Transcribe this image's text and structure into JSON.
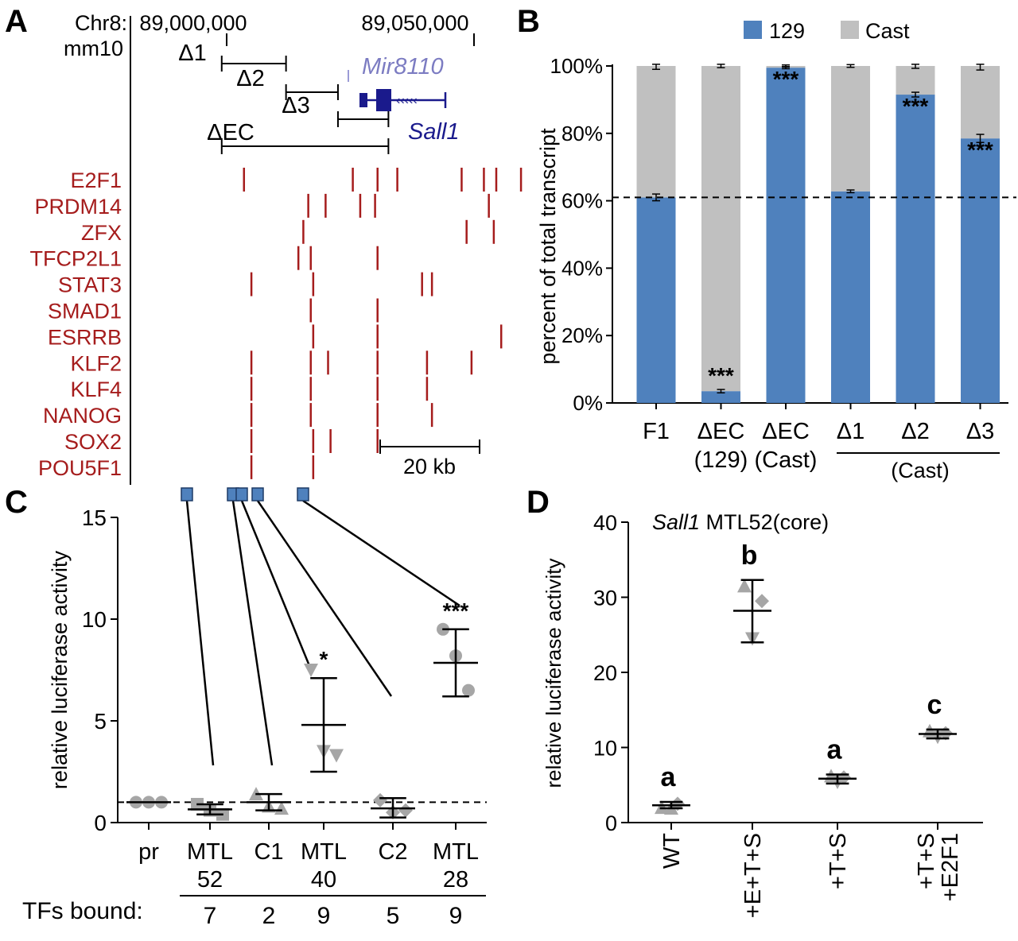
{
  "panel_labels": {
    "a": "A",
    "b": "B",
    "c": "C",
    "d": "D"
  },
  "panel_a": {
    "chrom_label": "Chr8:",
    "assembly": "mm10",
    "coord_left": "89,000,000",
    "coord_right": "89,050,000",
    "mir_label": "Mir8110",
    "sall1_label": "Sall1",
    "scale_label": "20 kb",
    "deletions": [
      {
        "label": "Δ1",
        "start": 88999000,
        "end": 89012000
      },
      {
        "label": "Δ2",
        "start": 89012000,
        "end": 89022500
      },
      {
        "label": "Δ3",
        "start": 89022500,
        "end": 89032700
      },
      {
        "label": "ΔEC",
        "start": 88999000,
        "end": 89032700
      }
    ],
    "tracks": [
      {
        "name": "E2F1",
        "peaks": [
          89003500,
          89025500,
          89030500,
          89034500,
          89047500,
          89052000,
          89054500,
          89059500
        ]
      },
      {
        "name": "PRDM14",
        "peaks": [
          89016500,
          89020000,
          89027000,
          89030000,
          89053000
        ]
      },
      {
        "name": "ZFX",
        "peaks": [
          89015500,
          89048500,
          89054000
        ]
      },
      {
        "name": "TFCP2L1",
        "peaks": [
          89014500,
          89017000,
          89030500
        ]
      },
      {
        "name": "STAT3",
        "peaks": [
          89005000,
          89017500,
          89039500,
          89041500
        ]
      },
      {
        "name": "SMAD1",
        "peaks": [
          89017000,
          89030500
        ]
      },
      {
        "name": "ESRRB",
        "peaks": [
          89017500,
          89030500,
          89055500
        ]
      },
      {
        "name": "KLF2",
        "peaks": [
          89005000,
          89017000,
          89020500,
          89030500,
          89040500,
          89049500
        ]
      },
      {
        "name": "KLF4",
        "peaks": [
          89005000,
          89017000,
          89030500,
          89040500
        ]
      },
      {
        "name": "NANOG",
        "peaks": [
          89005000,
          89017000,
          89030500,
          89041500
        ]
      },
      {
        "name": "SOX2",
        "peaks": [
          89005000,
          89017500,
          89021000,
          89030500
        ]
      },
      {
        "name": "POU5F1",
        "peaks": [
          89005000,
          89017500
        ]
      }
    ]
  },
  "panel_b": {
    "legend": [
      {
        "name": "129",
        "color": "#4f81bd"
      },
      {
        "name": "Cast",
        "color": "#c0c0c0"
      }
    ],
    "ylabel": "percent of total transcript",
    "ytick_labels": [
      "0%",
      "20%",
      "40%",
      "60%",
      "80%",
      "100%"
    ],
    "group_label": "(Cast)"
  },
  "panel_c": {
    "ylabel": "relative luciferase activity",
    "tfs_label": "TFs bound:",
    "tfs_counts": [
      "7",
      "2",
      "9",
      "5",
      "9"
    ]
  },
  "panel_d": {
    "title_italic": "Sall1",
    "title_rest": " MTL52(core)",
    "ylabel": "relative luciferase activity"
  },
  "chart_data": [
    {
      "type": "bar",
      "stacked": true,
      "categories": [
        "F1",
        "ΔEC (129)",
        "ΔEC (Cast)",
        "Δ1",
        "Δ2",
        "Δ3"
      ],
      "series": [
        {
          "name": "129",
          "values": [
            61,
            3.5,
            99.5,
            62.8,
            91.5,
            78.5
          ]
        },
        {
          "name": "Cast",
          "values": [
            39,
            96.5,
            0.5,
            37.2,
            8.5,
            21.5
          ]
        }
      ],
      "errors": [
        1,
        0.5,
        0.3,
        0.4,
        0.7,
        1.2
      ],
      "significance": [
        "",
        "***",
        "***",
        "",
        "***",
        "***"
      ],
      "reference_line": 61,
      "ylim": [
        0,
        100
      ],
      "ylabel": "percent of total transcript"
    },
    {
      "type": "scatter",
      "categories": [
        "pr",
        "MTL 52",
        "C1",
        "MTL 40",
        "C2",
        "MTL 28"
      ],
      "points": [
        [
          1,
          1,
          1
        ],
        [
          0.9,
          0.6,
          0.4
        ],
        [
          1.4,
          0.8,
          0.7
        ],
        [
          7.5,
          3.5,
          3.3
        ],
        [
          1.1,
          0.5,
          0.6
        ],
        [
          9.5,
          8.2,
          6.5
        ]
      ],
      "means": [
        1,
        0.65,
        1.0,
        4.8,
        0.7,
        7.85
      ],
      "error_high": [
        1,
        0.9,
        1.4,
        7.1,
        1.2,
        9.5
      ],
      "error_low": [
        1,
        0.4,
        0.6,
        2.5,
        0.25,
        6.2
      ],
      "significance": [
        "",
        "",
        "",
        "*",
        "",
        "***"
      ],
      "tfs_bound": [
        null,
        7,
        2,
        9,
        5,
        9
      ],
      "reference_line": 1,
      "ylim": [
        0,
        15
      ],
      "yticks": [
        0,
        5,
        10,
        15
      ],
      "ylabel": "relative luciferase activity"
    },
    {
      "type": "scatter",
      "title": "Sall1 MTL52(core)",
      "categories": [
        "WT",
        "+E+T+S",
        "+T+S",
        "+T+S +E2F1"
      ],
      "points": [
        [
          2.0,
          2.5,
          1.9
        ],
        [
          31.5,
          29.5,
          24.5
        ],
        [
          6.2,
          6.0,
          5.4
        ],
        [
          12.2,
          11.9,
          11.4
        ]
      ],
      "means": [
        2.3,
        28.2,
        5.85,
        11.8
      ],
      "error_high": [
        2.75,
        32.3,
        6.4,
        12.4
      ],
      "error_low": [
        1.9,
        24.0,
        5.2,
        11.2
      ],
      "letters": [
        "a",
        "b",
        "a",
        "c"
      ],
      "ylim": [
        0,
        40
      ],
      "yticks": [
        0,
        10,
        20,
        30,
        40
      ],
      "ylabel": "relative luciferase activity"
    }
  ]
}
